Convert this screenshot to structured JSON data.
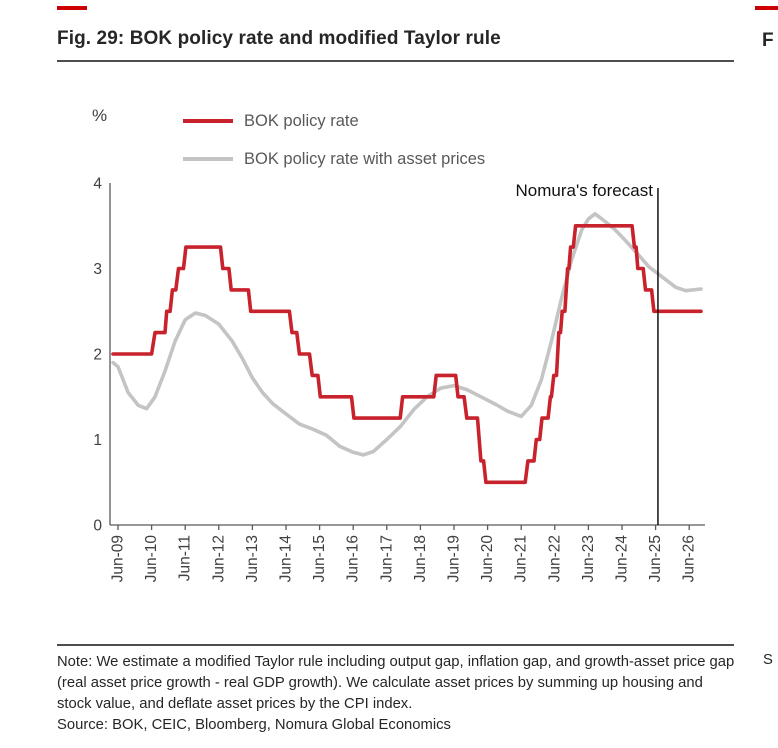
{
  "header": {
    "title": "Fig. 29: BOK policy rate and modified Taylor rule"
  },
  "adjacent": {
    "top_partial": "F",
    "bottom_partial": "S"
  },
  "footer": {
    "note": "Note: We estimate a modified Taylor rule including output gap, inflation gap, and growth-asset price gap (real asset price growth - real GDP growth). We calculate asset prices by summing up housing and stock value, and deflate asset prices by the CPI index.",
    "source": "Source: BOK, CEIC, Bloomberg, Nomura Global Economics"
  },
  "colors": {
    "accent_red": "#cc0000",
    "policy_rate_red": "#c8232c",
    "taylor_rule_gray": "#c4c4c4",
    "axis_gray": "#595959",
    "forecast_black": "#000000"
  },
  "chart_data": {
    "type": "line",
    "title": "Fig. 29: BOK policy rate and modified Taylor rule",
    "xlabel": "",
    "ylabel": "%",
    "ylim": [
      0,
      4
    ],
    "y_ticks": [
      4,
      3,
      2,
      1,
      0
    ],
    "x_tick_labels": [
      "Jun-09",
      "Jun-10",
      "Jun-11",
      "Jun-12",
      "Jun-13",
      "Jun-14",
      "Jun-15",
      "Jun-16",
      "Jun-17",
      "Jun-18",
      "Jun-19",
      "Jun-20",
      "Jun-21",
      "Jun-22",
      "Jun-23",
      "Jun-24",
      "Jun-25",
      "Jun-26"
    ],
    "x_unit": "years_since_Jun-09",
    "grid": false,
    "legend_position": "top-left",
    "annotation": {
      "label": "Nomura's forecast",
      "x": 16.07
    },
    "series": [
      {
        "name": "BOK policy rate",
        "color": "#c8232c",
        "points": [
          [
            -0.15,
            2.0
          ],
          [
            1.0,
            2.0
          ],
          [
            1.1,
            2.25
          ],
          [
            1.4,
            2.25
          ],
          [
            1.45,
            2.5
          ],
          [
            1.55,
            2.5
          ],
          [
            1.62,
            2.75
          ],
          [
            1.72,
            2.75
          ],
          [
            1.8,
            3.0
          ],
          [
            1.95,
            3.0
          ],
          [
            2.02,
            3.25
          ],
          [
            3.05,
            3.25
          ],
          [
            3.12,
            3.0
          ],
          [
            3.3,
            3.0
          ],
          [
            3.37,
            2.75
          ],
          [
            3.88,
            2.75
          ],
          [
            3.95,
            2.5
          ],
          [
            5.1,
            2.5
          ],
          [
            5.18,
            2.25
          ],
          [
            5.32,
            2.25
          ],
          [
            5.4,
            2.0
          ],
          [
            5.7,
            2.0
          ],
          [
            5.78,
            1.75
          ],
          [
            5.95,
            1.75
          ],
          [
            6.02,
            1.5
          ],
          [
            6.95,
            1.5
          ],
          [
            7.02,
            1.25
          ],
          [
            8.4,
            1.25
          ],
          [
            8.47,
            1.5
          ],
          [
            9.4,
            1.5
          ],
          [
            9.47,
            1.75
          ],
          [
            10.05,
            1.75
          ],
          [
            10.12,
            1.5
          ],
          [
            10.3,
            1.5
          ],
          [
            10.38,
            1.25
          ],
          [
            10.7,
            1.25
          ],
          [
            10.8,
            0.75
          ],
          [
            10.88,
            0.75
          ],
          [
            10.95,
            0.5
          ],
          [
            12.12,
            0.5
          ],
          [
            12.2,
            0.75
          ],
          [
            12.38,
            0.75
          ],
          [
            12.45,
            1.0
          ],
          [
            12.55,
            1.0
          ],
          [
            12.62,
            1.25
          ],
          [
            12.8,
            1.25
          ],
          [
            12.87,
            1.5
          ],
          [
            12.9,
            1.5
          ],
          [
            12.97,
            1.75
          ],
          [
            13.05,
            1.75
          ],
          [
            13.12,
            2.25
          ],
          [
            13.17,
            2.25
          ],
          [
            13.22,
            2.5
          ],
          [
            13.3,
            2.5
          ],
          [
            13.38,
            3.0
          ],
          [
            13.42,
            3.0
          ],
          [
            13.47,
            3.25
          ],
          [
            13.55,
            3.25
          ],
          [
            13.62,
            3.5
          ],
          [
            15.3,
            3.5
          ],
          [
            15.37,
            3.25
          ],
          [
            15.42,
            3.25
          ],
          [
            15.47,
            3.0
          ],
          [
            15.63,
            3.0
          ],
          [
            15.7,
            2.75
          ],
          [
            15.88,
            2.75
          ],
          [
            15.95,
            2.5
          ],
          [
            17.35,
            2.5
          ]
        ]
      },
      {
        "name": "BOK policy rate with asset prices",
        "color": "#c4c4c4",
        "points": [
          [
            -0.15,
            1.9
          ],
          [
            0,
            1.85
          ],
          [
            0.3,
            1.55
          ],
          [
            0.6,
            1.4
          ],
          [
            0.85,
            1.36
          ],
          [
            1.1,
            1.5
          ],
          [
            1.4,
            1.8
          ],
          [
            1.7,
            2.15
          ],
          [
            2.0,
            2.4
          ],
          [
            2.3,
            2.48
          ],
          [
            2.6,
            2.45
          ],
          [
            3.0,
            2.35
          ],
          [
            3.4,
            2.15
          ],
          [
            3.7,
            1.95
          ],
          [
            4.0,
            1.72
          ],
          [
            4.3,
            1.55
          ],
          [
            4.6,
            1.42
          ],
          [
            5.0,
            1.3
          ],
          [
            5.4,
            1.18
          ],
          [
            5.8,
            1.12
          ],
          [
            6.2,
            1.05
          ],
          [
            6.6,
            0.92
          ],
          [
            7.0,
            0.85
          ],
          [
            7.3,
            0.82
          ],
          [
            7.6,
            0.86
          ],
          [
            8.0,
            1.0
          ],
          [
            8.4,
            1.15
          ],
          [
            8.8,
            1.35
          ],
          [
            9.2,
            1.5
          ],
          [
            9.6,
            1.6
          ],
          [
            10.0,
            1.63
          ],
          [
            10.4,
            1.58
          ],
          [
            10.8,
            1.5
          ],
          [
            11.2,
            1.42
          ],
          [
            11.6,
            1.33
          ],
          [
            12.0,
            1.27
          ],
          [
            12.3,
            1.4
          ],
          [
            12.6,
            1.7
          ],
          [
            12.9,
            2.15
          ],
          [
            13.2,
            2.65
          ],
          [
            13.5,
            3.1
          ],
          [
            13.8,
            3.45
          ],
          [
            14.0,
            3.58
          ],
          [
            14.2,
            3.64
          ],
          [
            14.5,
            3.55
          ],
          [
            14.8,
            3.45
          ],
          [
            15.0,
            3.37
          ],
          [
            15.4,
            3.2
          ],
          [
            15.8,
            3.02
          ],
          [
            16.2,
            2.9
          ],
          [
            16.6,
            2.78
          ],
          [
            16.9,
            2.74
          ],
          [
            17.35,
            2.76
          ]
        ]
      }
    ]
  }
}
